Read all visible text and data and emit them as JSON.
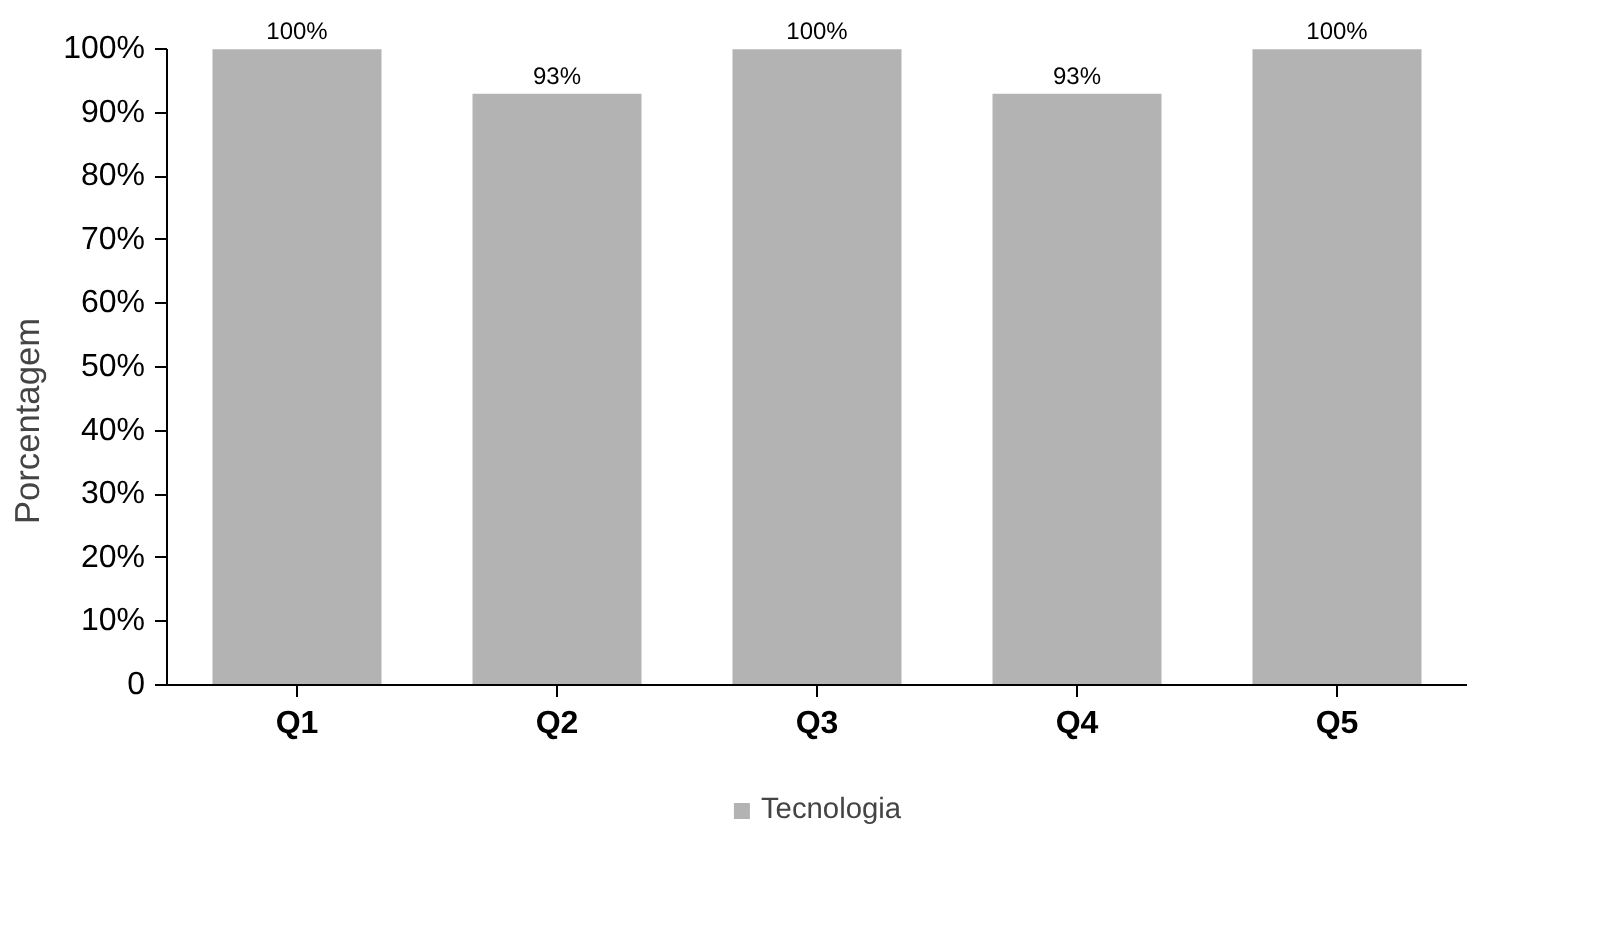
{
  "chart_data": {
    "type": "bar",
    "ylabel": "Porcentagem",
    "categories": [
      "Q1",
      "Q2",
      "Q3",
      "Q4",
      "Q5"
    ],
    "series": [
      {
        "name": "Tecnologia",
        "color": "#b3b3b3",
        "values": [
          100,
          93,
          100,
          93,
          100
        ],
        "value_labels": [
          "100%",
          "93%",
          "100%",
          "93%",
          "100%"
        ]
      }
    ],
    "ylim": [
      0,
      100
    ],
    "yticks": [
      0,
      {
        "value": 10,
        "label": "10%"
      },
      {
        "value": 20,
        "label": "20%"
      },
      {
        "value": 30,
        "label": "30%"
      },
      {
        "value": 40,
        "label": "40%"
      },
      {
        "value": 50,
        "label": "50%"
      },
      {
        "value": 60,
        "label": "60%"
      },
      {
        "value": 70,
        "label": "70%"
      },
      {
        "value": 80,
        "label": "80%"
      },
      {
        "value": 90,
        "label": "90%"
      },
      {
        "value": 100,
        "label": "100%"
      }
    ],
    "legend": "bottom"
  }
}
